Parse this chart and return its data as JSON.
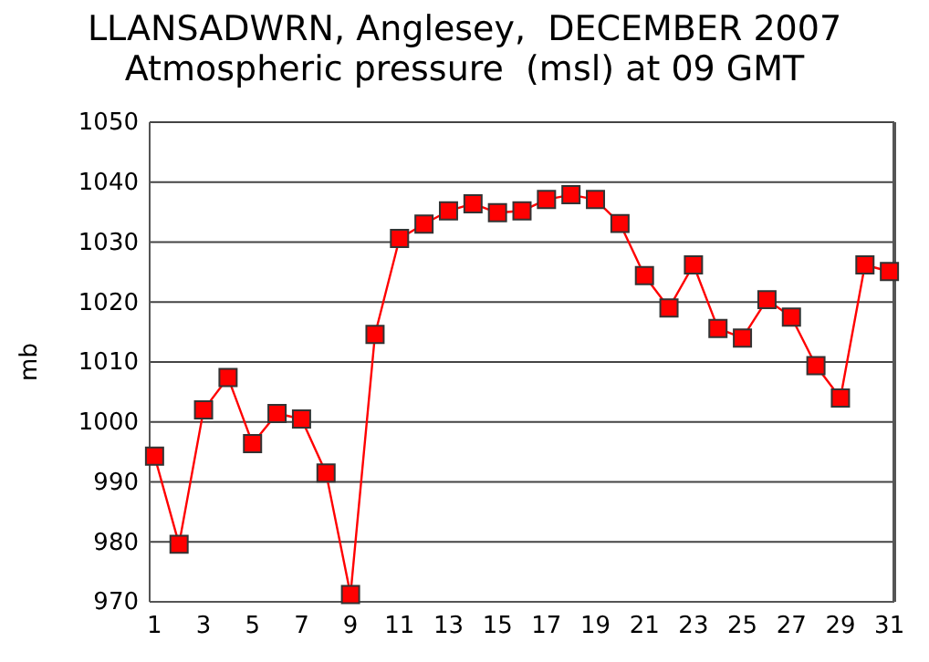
{
  "chart_data": {
    "type": "line",
    "title": "LLANSADWRN, Anglesey,  DECEMBER 2007",
    "subtitle": "Atmospheric pressure  (msl) at 09 GMT",
    "ylabel": "mb",
    "x": [
      1,
      2,
      3,
      4,
      5,
      6,
      7,
      8,
      9,
      10,
      11,
      12,
      13,
      14,
      15,
      16,
      17,
      18,
      19,
      20,
      21,
      22,
      23,
      24,
      25,
      26,
      27,
      28,
      29,
      30,
      31
    ],
    "series": [
      {
        "color": "#ff0000",
        "values": [
          994.3,
          979.6,
          1002,
          1007.4,
          996.4,
          1001.4,
          1000.5,
          991.5,
          971.2,
          1014.6,
          1030.6,
          1033,
          1035.2,
          1036.4,
          1034.9,
          1035.2,
          1037.1,
          1037.9,
          1037.1,
          1033.1,
          1024.4,
          1019,
          1026.2,
          1015.6,
          1014,
          1020.4,
          1017.5,
          1009.4,
          1004,
          1026.2,
          1025.1
        ]
      }
    ],
    "xlim": [
      0.8,
      31.2
    ],
    "xticks": [
      1,
      3,
      5,
      7,
      9,
      11,
      13,
      15,
      17,
      19,
      21,
      23,
      25,
      27,
      29,
      31
    ],
    "ylim": [
      970,
      1050
    ],
    "yticks": [
      970,
      980,
      990,
      1000,
      1010,
      1020,
      1030,
      1040,
      1050
    ],
    "grid": "y",
    "marker": "square",
    "line_style": "solid"
  }
}
